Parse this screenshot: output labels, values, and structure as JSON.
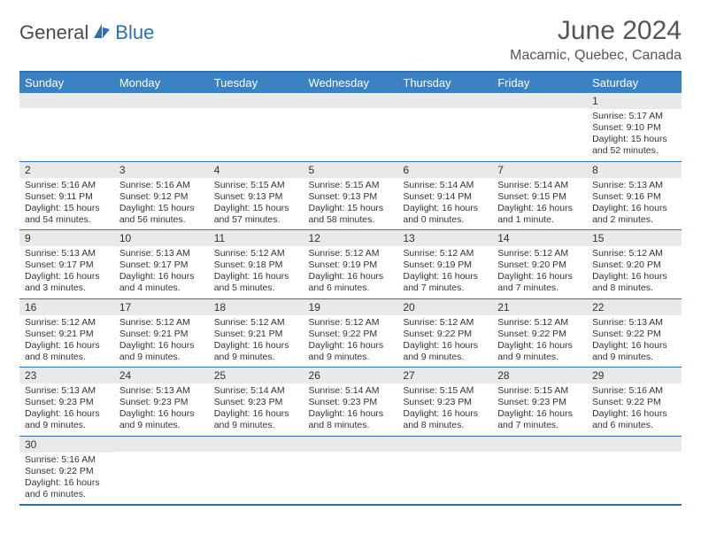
{
  "logo": {
    "text1": "General",
    "text2": "Blue"
  },
  "title": "June 2024",
  "location": "Macamic, Quebec, Canada",
  "colors": {
    "header_bg": "#3b82c4",
    "header_text": "#ffffff",
    "border": "#2b6fb5",
    "daynum_bg": "#e9e9e9",
    "body_text": "#333333",
    "logo_gray": "#4a4a4a",
    "logo_blue": "#2b6fb5"
  },
  "dayLabels": [
    "Sunday",
    "Monday",
    "Tuesday",
    "Wednesday",
    "Thursday",
    "Friday",
    "Saturday"
  ],
  "weeks": [
    [
      null,
      null,
      null,
      null,
      null,
      null,
      {
        "n": "1",
        "sr": "Sunrise: 5:17 AM",
        "ss": "Sunset: 9:10 PM",
        "dl": "Daylight: 15 hours and 52 minutes."
      }
    ],
    [
      {
        "n": "2",
        "sr": "Sunrise: 5:16 AM",
        "ss": "Sunset: 9:11 PM",
        "dl": "Daylight: 15 hours and 54 minutes."
      },
      {
        "n": "3",
        "sr": "Sunrise: 5:16 AM",
        "ss": "Sunset: 9:12 PM",
        "dl": "Daylight: 15 hours and 56 minutes."
      },
      {
        "n": "4",
        "sr": "Sunrise: 5:15 AM",
        "ss": "Sunset: 9:13 PM",
        "dl": "Daylight: 15 hours and 57 minutes."
      },
      {
        "n": "5",
        "sr": "Sunrise: 5:15 AM",
        "ss": "Sunset: 9:13 PM",
        "dl": "Daylight: 15 hours and 58 minutes."
      },
      {
        "n": "6",
        "sr": "Sunrise: 5:14 AM",
        "ss": "Sunset: 9:14 PM",
        "dl": "Daylight: 16 hours and 0 minutes."
      },
      {
        "n": "7",
        "sr": "Sunrise: 5:14 AM",
        "ss": "Sunset: 9:15 PM",
        "dl": "Daylight: 16 hours and 1 minute."
      },
      {
        "n": "8",
        "sr": "Sunrise: 5:13 AM",
        "ss": "Sunset: 9:16 PM",
        "dl": "Daylight: 16 hours and 2 minutes."
      }
    ],
    [
      {
        "n": "9",
        "sr": "Sunrise: 5:13 AM",
        "ss": "Sunset: 9:17 PM",
        "dl": "Daylight: 16 hours and 3 minutes."
      },
      {
        "n": "10",
        "sr": "Sunrise: 5:13 AM",
        "ss": "Sunset: 9:17 PM",
        "dl": "Daylight: 16 hours and 4 minutes."
      },
      {
        "n": "11",
        "sr": "Sunrise: 5:12 AM",
        "ss": "Sunset: 9:18 PM",
        "dl": "Daylight: 16 hours and 5 minutes."
      },
      {
        "n": "12",
        "sr": "Sunrise: 5:12 AM",
        "ss": "Sunset: 9:19 PM",
        "dl": "Daylight: 16 hours and 6 minutes."
      },
      {
        "n": "13",
        "sr": "Sunrise: 5:12 AM",
        "ss": "Sunset: 9:19 PM",
        "dl": "Daylight: 16 hours and 7 minutes."
      },
      {
        "n": "14",
        "sr": "Sunrise: 5:12 AM",
        "ss": "Sunset: 9:20 PM",
        "dl": "Daylight: 16 hours and 7 minutes."
      },
      {
        "n": "15",
        "sr": "Sunrise: 5:12 AM",
        "ss": "Sunset: 9:20 PM",
        "dl": "Daylight: 16 hours and 8 minutes."
      }
    ],
    [
      {
        "n": "16",
        "sr": "Sunrise: 5:12 AM",
        "ss": "Sunset: 9:21 PM",
        "dl": "Daylight: 16 hours and 8 minutes."
      },
      {
        "n": "17",
        "sr": "Sunrise: 5:12 AM",
        "ss": "Sunset: 9:21 PM",
        "dl": "Daylight: 16 hours and 9 minutes."
      },
      {
        "n": "18",
        "sr": "Sunrise: 5:12 AM",
        "ss": "Sunset: 9:21 PM",
        "dl": "Daylight: 16 hours and 9 minutes."
      },
      {
        "n": "19",
        "sr": "Sunrise: 5:12 AM",
        "ss": "Sunset: 9:22 PM",
        "dl": "Daylight: 16 hours and 9 minutes."
      },
      {
        "n": "20",
        "sr": "Sunrise: 5:12 AM",
        "ss": "Sunset: 9:22 PM",
        "dl": "Daylight: 16 hours and 9 minutes."
      },
      {
        "n": "21",
        "sr": "Sunrise: 5:12 AM",
        "ss": "Sunset: 9:22 PM",
        "dl": "Daylight: 16 hours and 9 minutes."
      },
      {
        "n": "22",
        "sr": "Sunrise: 5:13 AM",
        "ss": "Sunset: 9:22 PM",
        "dl": "Daylight: 16 hours and 9 minutes."
      }
    ],
    [
      {
        "n": "23",
        "sr": "Sunrise: 5:13 AM",
        "ss": "Sunset: 9:23 PM",
        "dl": "Daylight: 16 hours and 9 minutes."
      },
      {
        "n": "24",
        "sr": "Sunrise: 5:13 AM",
        "ss": "Sunset: 9:23 PM",
        "dl": "Daylight: 16 hours and 9 minutes."
      },
      {
        "n": "25",
        "sr": "Sunrise: 5:14 AM",
        "ss": "Sunset: 9:23 PM",
        "dl": "Daylight: 16 hours and 9 minutes."
      },
      {
        "n": "26",
        "sr": "Sunrise: 5:14 AM",
        "ss": "Sunset: 9:23 PM",
        "dl": "Daylight: 16 hours and 8 minutes."
      },
      {
        "n": "27",
        "sr": "Sunrise: 5:15 AM",
        "ss": "Sunset: 9:23 PM",
        "dl": "Daylight: 16 hours and 8 minutes."
      },
      {
        "n": "28",
        "sr": "Sunrise: 5:15 AM",
        "ss": "Sunset: 9:23 PM",
        "dl": "Daylight: 16 hours and 7 minutes."
      },
      {
        "n": "29",
        "sr": "Sunrise: 5:16 AM",
        "ss": "Sunset: 9:22 PM",
        "dl": "Daylight: 16 hours and 6 minutes."
      }
    ],
    [
      {
        "n": "30",
        "sr": "Sunrise: 5:16 AM",
        "ss": "Sunset: 9:22 PM",
        "dl": "Daylight: 16 hours and 6 minutes."
      },
      null,
      null,
      null,
      null,
      null,
      null
    ]
  ]
}
